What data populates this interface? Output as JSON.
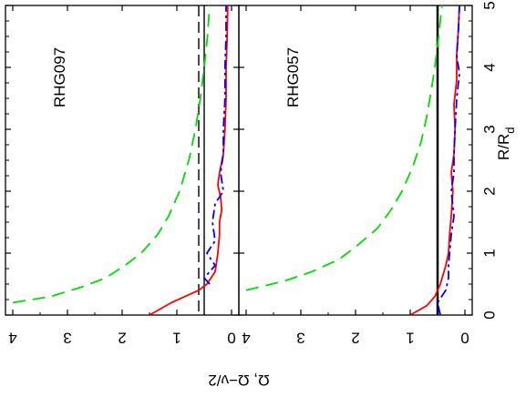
{
  "chart_data": [
    {
      "panel_label": "RHG097",
      "type": "line",
      "xlim": [
        0,
        5
      ],
      "ylim": [
        4,
        0
      ],
      "series": [
        {
          "name": "",
          "style": "green-dashed",
          "color": "#00dd00",
          "x": [
            0.2,
            0.3,
            0.45,
            0.6,
            0.8,
            1.0,
            1.3,
            1.6,
            2.0,
            2.5,
            3.0,
            3.5,
            4.0,
            4.5,
            5.0
          ],
          "y": [
            4.0,
            3.3,
            2.75,
            2.3,
            1.95,
            1.65,
            1.35,
            1.15,
            0.95,
            0.78,
            0.66,
            0.57,
            0.5,
            0.44,
            0.4
          ]
        },
        {
          "name": "",
          "style": "red-solid",
          "color": "#ff0000",
          "x": [
            0.0,
            0.2,
            0.3,
            0.4,
            0.5,
            0.7,
            1.0,
            1.3,
            1.5,
            1.7,
            1.9,
            2.1,
            2.3,
            2.6,
            3.0,
            3.5,
            4.0,
            4.5,
            5.0
          ],
          "y": [
            1.5,
            1.1,
            0.85,
            0.6,
            0.45,
            0.3,
            0.25,
            0.22,
            0.22,
            0.18,
            0.2,
            0.25,
            0.22,
            0.15,
            0.12,
            0.1,
            0.1,
            0.08,
            0.07
          ]
        },
        {
          "name": "",
          "style": "blue-dashdot",
          "color": "#0000ff",
          "x": [
            0.5,
            0.6,
            0.8,
            1.0,
            1.2,
            1.5,
            1.8,
            2.0,
            2.3,
            2.6,
            3.0,
            3.5,
            4.0,
            4.5,
            5.0
          ],
          "y": [
            0.4,
            0.5,
            0.3,
            0.45,
            0.3,
            0.35,
            0.3,
            0.15,
            0.2,
            0.15,
            0.15,
            0.12,
            0.12,
            0.1,
            0.1
          ]
        }
      ],
      "vlines": [
        {
          "value": 0.6,
          "style": "black-dashed"
        },
        {
          "value": 0.5,
          "style": "black-solid"
        }
      ]
    },
    {
      "panel_label": "RHG057",
      "type": "line",
      "xlim": [
        0,
        5
      ],
      "ylim": [
        4,
        0
      ],
      "series": [
        {
          "name": "",
          "style": "green-dashed",
          "color": "#00dd00",
          "x": [
            0.4,
            0.55,
            0.7,
            0.9,
            1.1,
            1.4,
            1.7,
            2.0,
            2.4,
            2.8,
            3.2,
            3.6,
            4.0,
            4.5,
            5.0
          ],
          "y": [
            4.0,
            3.3,
            2.8,
            2.3,
            2.0,
            1.6,
            1.35,
            1.15,
            0.95,
            0.8,
            0.7,
            0.62,
            0.55,
            0.48,
            0.42
          ]
        },
        {
          "name": "",
          "style": "red-solid",
          "color": "#ff0000",
          "x": [
            0.0,
            0.15,
            0.3,
            0.5,
            0.8,
            1.0,
            1.3,
            1.6,
            2.0,
            2.3,
            2.6,
            3.0,
            3.4,
            3.8,
            4.2,
            4.6,
            5.0
          ],
          "y": [
            1.0,
            0.7,
            0.55,
            0.45,
            0.35,
            0.3,
            0.28,
            0.25,
            0.22,
            0.25,
            0.2,
            0.18,
            0.2,
            0.15,
            0.15,
            0.12,
            0.1
          ]
        },
        {
          "name": "",
          "style": "blue-dashdot",
          "color": "#0000ff",
          "x": [
            0.0,
            0.2,
            0.4,
            0.6,
            0.8,
            1.0,
            1.3,
            1.6,
            2.0,
            2.3,
            2.6,
            3.0,
            3.5,
            3.9,
            4.2,
            4.6,
            5.0
          ],
          "y": [
            0.45,
            0.5,
            0.35,
            0.3,
            0.3,
            0.28,
            0.25,
            0.2,
            0.25,
            0.2,
            0.2,
            0.18,
            0.15,
            0.1,
            0.15,
            0.12,
            0.1
          ]
        }
      ],
      "vlines": [
        {
          "value": 0.5,
          "style": "black-solid-thick"
        }
      ]
    }
  ],
  "axes": {
    "right_label": "R/R",
    "right_label_sub": "d",
    "bottom_label": "Ω, Ω−ν/2",
    "r_ticks": [
      "0",
      "1",
      "2",
      "3",
      "4",
      "5"
    ],
    "y_ticks_left": [
      "4",
      "3",
      "2",
      "1",
      "0"
    ],
    "y_ticks_right": [
      "4",
      "3",
      "2",
      "1",
      "0"
    ]
  }
}
